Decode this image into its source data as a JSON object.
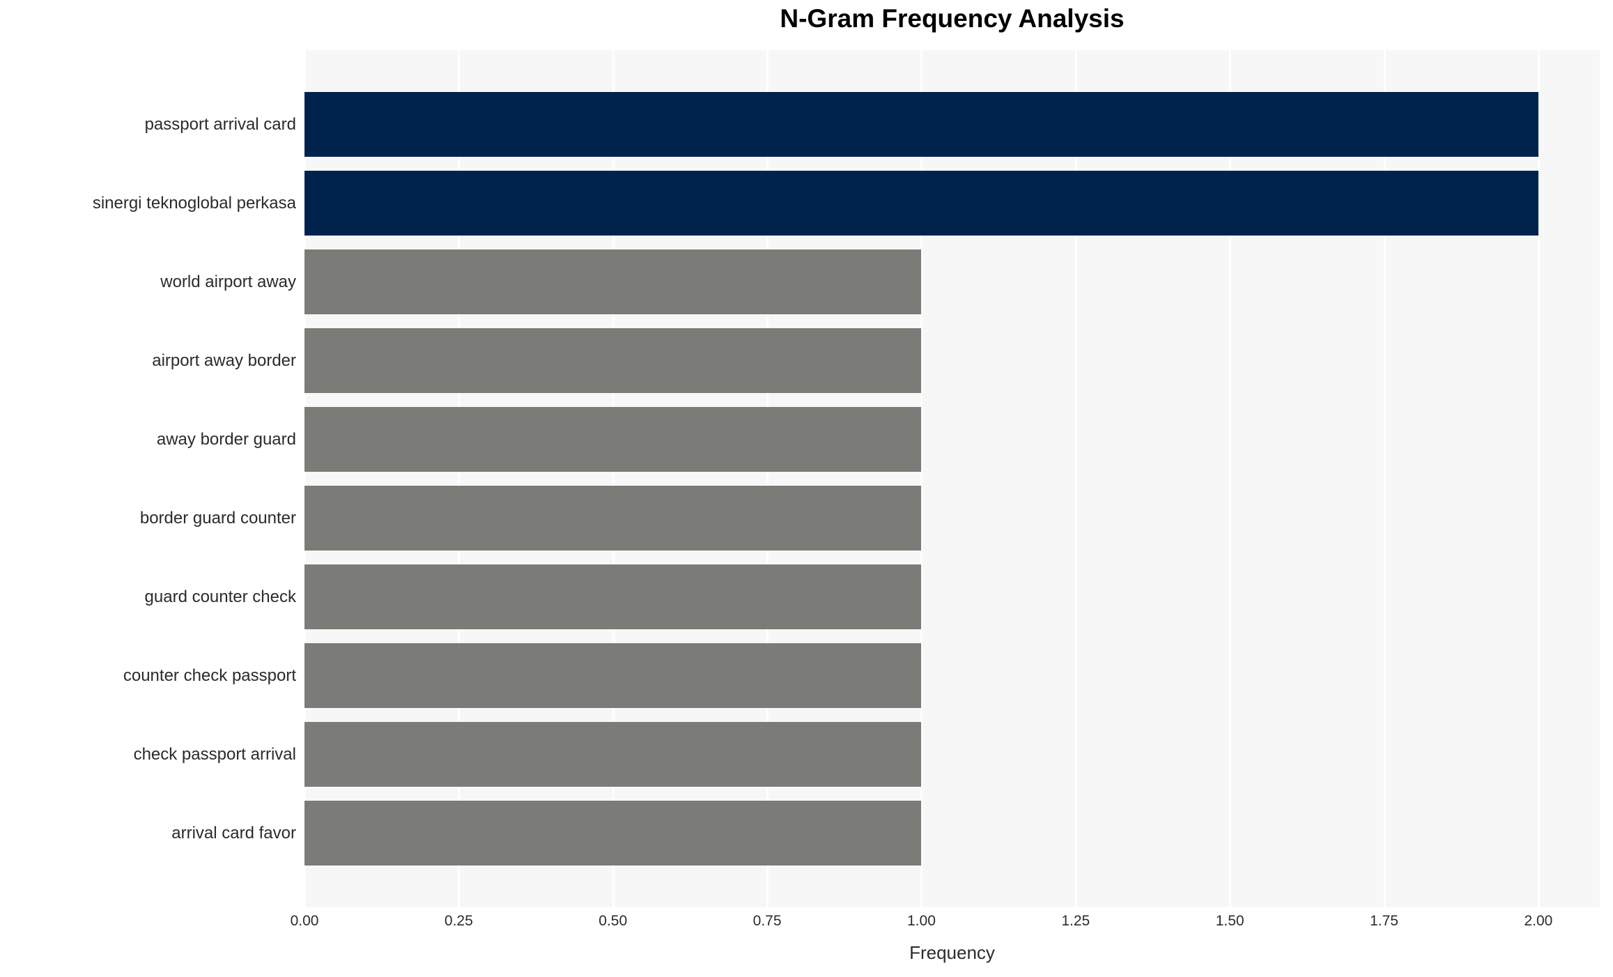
{
  "chart_data": {
    "type": "bar",
    "orientation": "horizontal",
    "title": "N-Gram Frequency Analysis",
    "xlabel": "Frequency",
    "ylabel": "",
    "categories": [
      "passport arrival card",
      "sinergi teknoglobal perkasa",
      "world airport away",
      "airport away border",
      "away border guard",
      "border guard counter",
      "guard counter check",
      "counter check passport",
      "check passport arrival",
      "arrival card favor"
    ],
    "values": [
      2,
      2,
      1,
      1,
      1,
      1,
      1,
      1,
      1,
      1
    ],
    "bar_colors": [
      "#00234d",
      "#00234d",
      "#7b7b77",
      "#7b7b77",
      "#7b7b77",
      "#7b7b77",
      "#7b7b77",
      "#7b7b77",
      "#7b7b77",
      "#7b7b77"
    ],
    "xlim": [
      0,
      2.1
    ],
    "xticks": [
      0.0,
      0.25,
      0.5,
      0.75,
      1.0,
      1.25,
      1.5,
      1.75,
      2.0
    ],
    "xticklabels": [
      "0.00",
      "0.25",
      "0.50",
      "0.75",
      "1.00",
      "1.25",
      "1.50",
      "1.75",
      "2.00"
    ],
    "grid": "vertical white gridlines at x ticks, on",
    "legend": "none",
    "colors": {
      "highlight_bar": "#00234d",
      "default_bar": "#7b7b77",
      "plot_background": "#f7f7f7",
      "gridline": "#ffffff",
      "figure_background": "#ffffff",
      "text": "#2b2b2b",
      "title_text": "#000000"
    }
  }
}
